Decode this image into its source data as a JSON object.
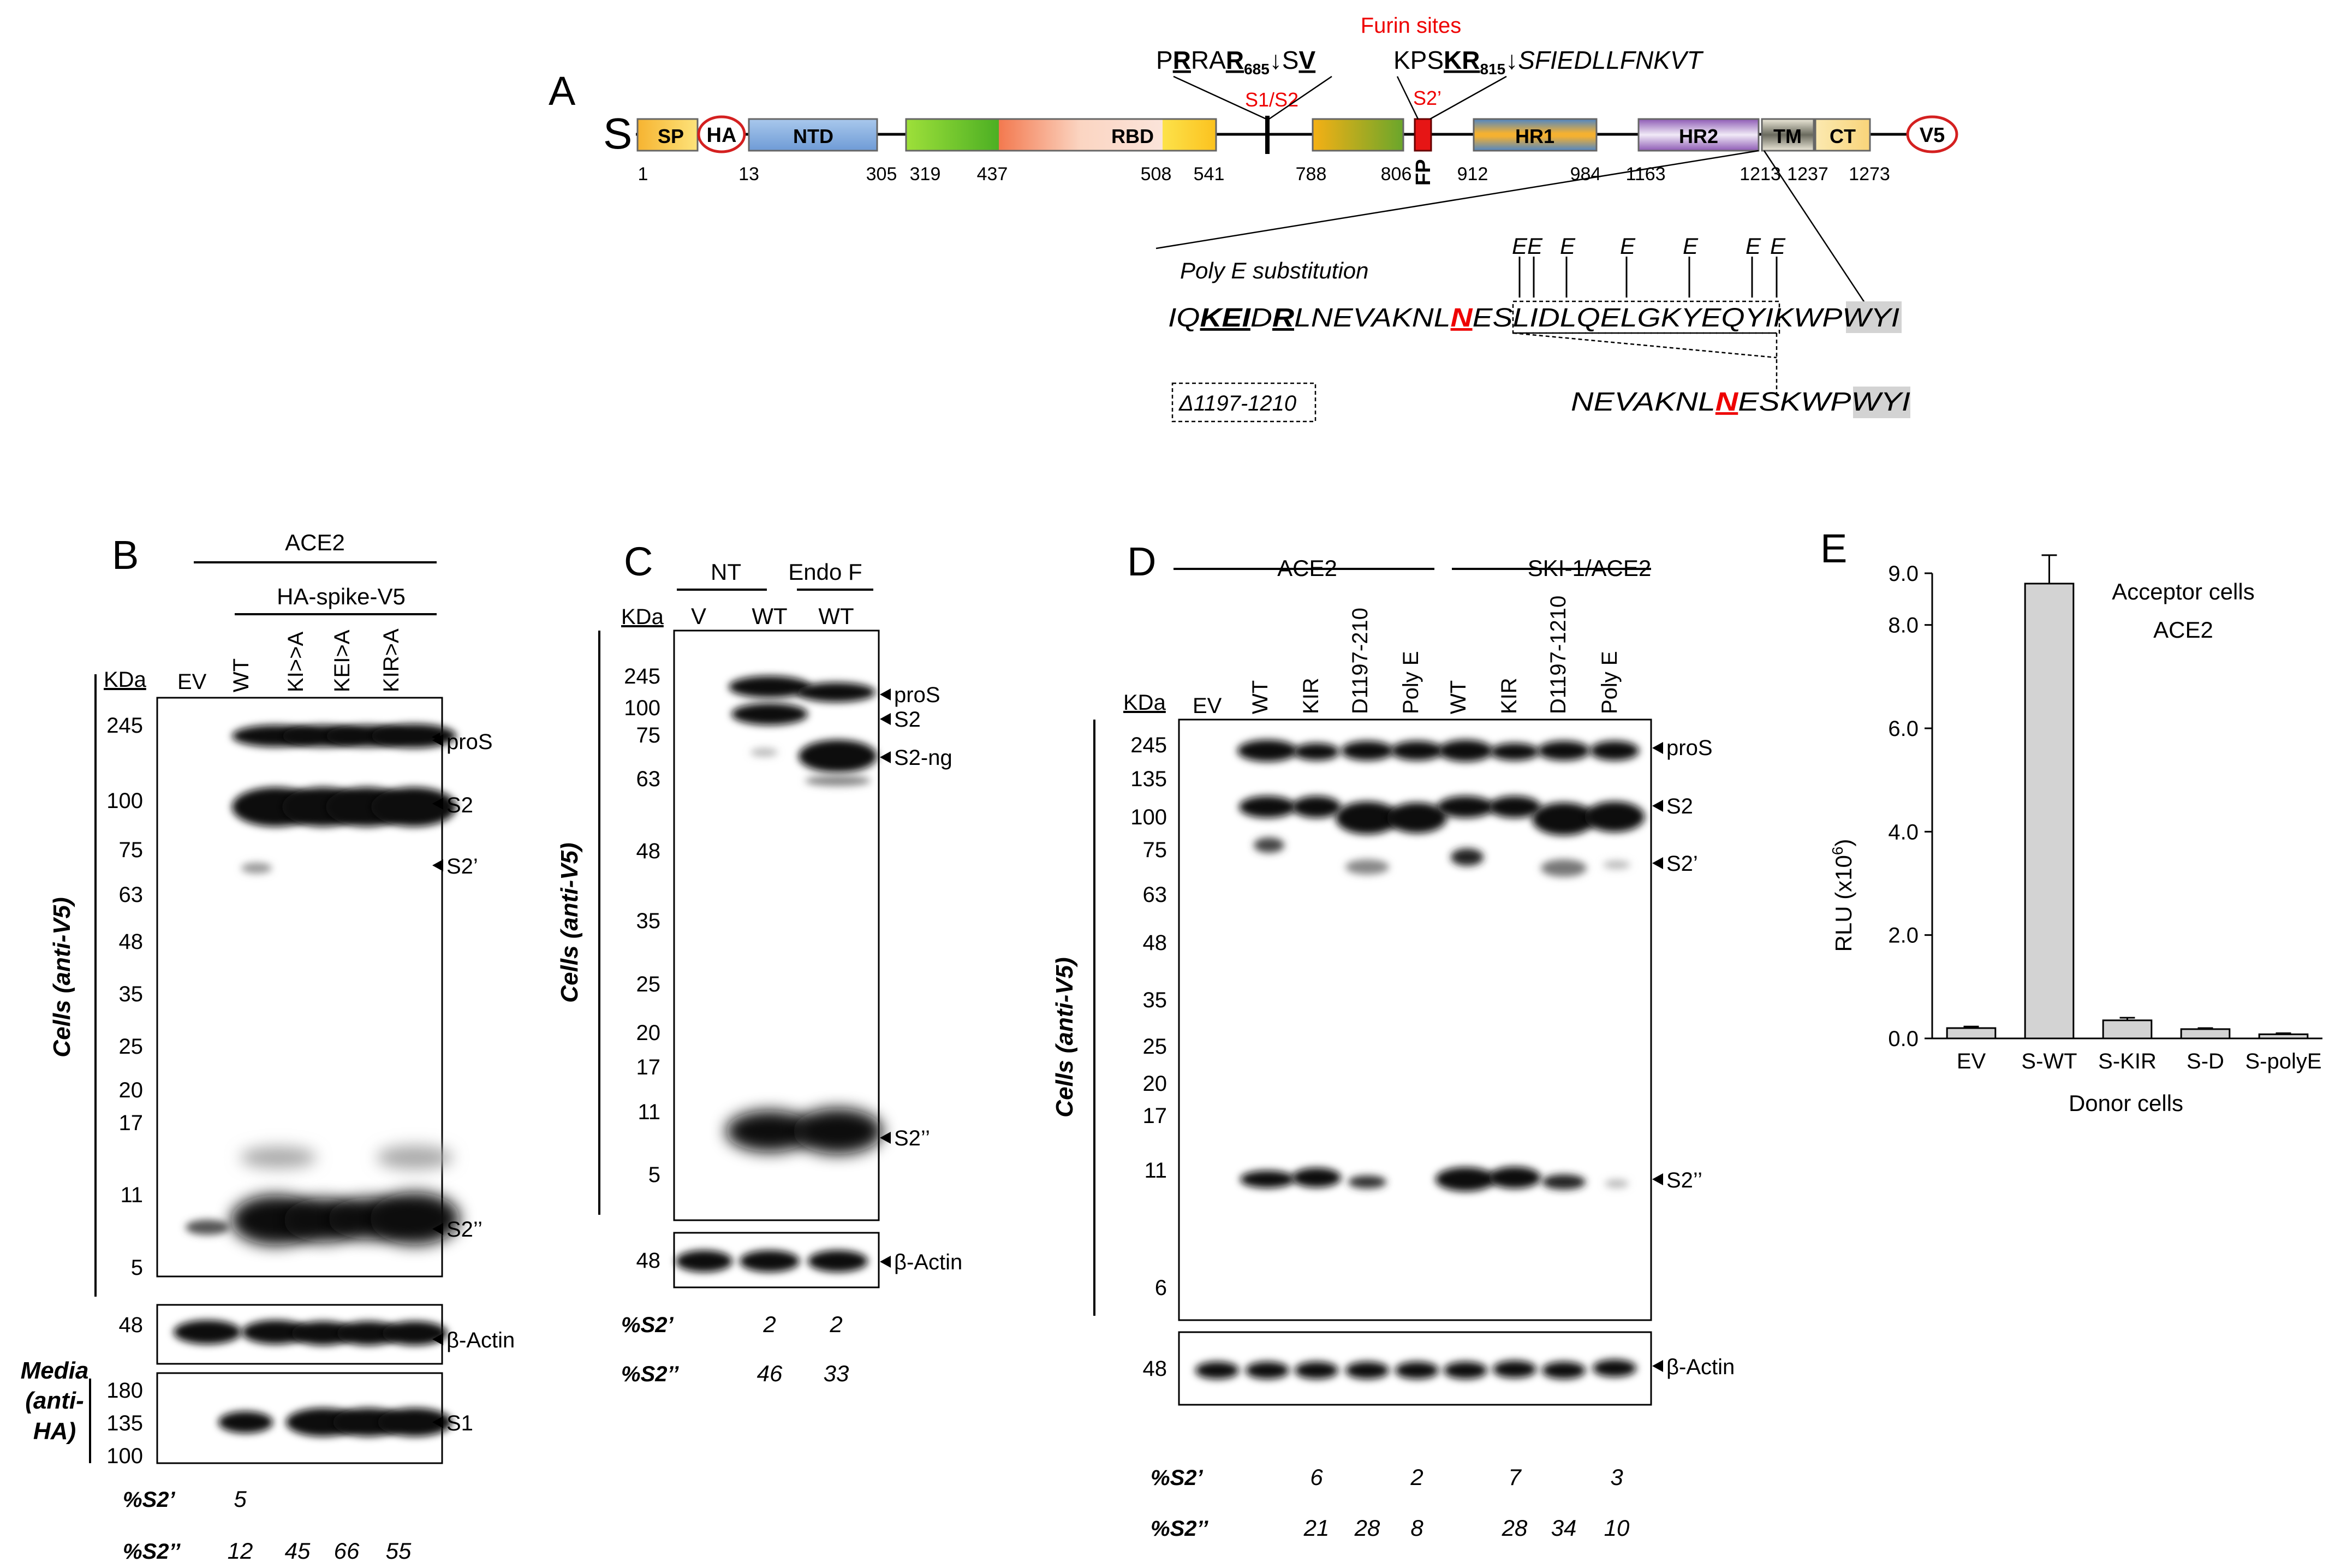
{
  "panel_letters": {
    "a": "A",
    "b": "B",
    "c": "C",
    "d": "D",
    "e": "E"
  },
  "panel_a": {
    "protein_label": "S",
    "domains": {
      "sp": "SP",
      "ha": "HA",
      "ntd": "NTD",
      "rbd": "RBD",
      "hr1": "HR1",
      "hr2": "HR2",
      "tm": "TM",
      "ct": "CT",
      "v5": "V5",
      "fp": "FP"
    },
    "positions": [
      "1",
      "13",
      "305",
      "319",
      "437",
      "508",
      "541",
      "788",
      "806",
      "912",
      "984",
      "1163",
      "1213",
      "1237",
      "1273"
    ],
    "furin_title": "Furin sites",
    "s1s2_label": "S1/S2",
    "s2prime_label": "S2’",
    "s1s2_seq": {
      "p1": "P",
      "r1": "R",
      "ra": "RA",
      "r685": "R",
      "sub685": "685",
      "arrow": "↓",
      "s": "S",
      "v": "V"
    },
    "s2prime_seq": {
      "kps": "KPS",
      "kr": "KR",
      "sub815": "815",
      "arrow": "↓",
      "tail": "SFIEDLLFNKVT"
    },
    "polye_title": "Poly E substitution",
    "e_mark": "E",
    "seq_wt": {
      "a": "IQ",
      "b": "KEI",
      "c": "D",
      "d": "R",
      "e": "LNEVAKNL",
      "f": "N",
      "g": "ES",
      "h": "LIDLQELGKYEQYI",
      "i": "KWP",
      "j": "WYI"
    },
    "deletion_label": "Δ1197-1210",
    "seq_del": {
      "a": "NEVAKNL",
      "b": "N",
      "c": "ES",
      "d": "KWP",
      "e": "WYI"
    }
  },
  "panel_b": {
    "top_label": "ACE2",
    "construct_label": "HA-spike-V5",
    "kda": "KDa",
    "lanes": [
      "EV",
      "WT",
      "KI>>A",
      "KEI>A",
      "KIR>A"
    ],
    "y_axis_label": "Cells (anti-V5)",
    "markers": [
      "245",
      "100",
      "75",
      "63",
      "48",
      "35",
      "25",
      "20",
      "17",
      "11",
      "5"
    ],
    "actin_marker": "48",
    "media_markers": [
      "180",
      "135",
      "100"
    ],
    "media_label_1": "Media",
    "media_label_2": "(anti-",
    "media_label_3": "HA)",
    "bands": [
      "proS",
      "S2",
      "S2’",
      "S2’’"
    ],
    "actin": "β-Actin",
    "media_band": "S1",
    "pct_s2p_label": "%S2’",
    "pct_s2pp_label": "%S2’’",
    "pct_s2p": [
      "",
      "5",
      "",
      "",
      ""
    ],
    "pct_s2pp": [
      "",
      "12",
      "45",
      "66",
      "55"
    ]
  },
  "panel_c": {
    "groups": [
      "NT",
      "Endo F"
    ],
    "kda": "KDa",
    "lanes": [
      "V",
      "WT",
      "WT"
    ],
    "y_axis_label": "Cells (anti-V5)",
    "markers": [
      "245",
      "100",
      "75",
      "63",
      "48",
      "35",
      "25",
      "20",
      "17",
      "11",
      "5"
    ],
    "actin_marker": "48",
    "bands": [
      "proS",
      "S2",
      "S2-ng",
      "S2’’"
    ],
    "actin": "β-Actin",
    "pct_s2p_label": "%S2’",
    "pct_s2pp_label": "%S2’’",
    "pct_s2p": [
      "",
      "2",
      "2"
    ],
    "pct_s2pp": [
      "",
      "46",
      "33"
    ]
  },
  "panel_d": {
    "groups": [
      "ACE2",
      "SKI-1/ACE2"
    ],
    "kda": "KDa",
    "lanes": [
      "EV",
      "WT",
      "KIR",
      "D1197-210",
      "Poly E",
      "WT",
      "KIR",
      "D1197-1210",
      "Poly E"
    ],
    "y_axis_label": "Cells (anti-V5)",
    "markers": [
      "245",
      "135",
      "100",
      "75",
      "63",
      "48",
      "35",
      "25",
      "20",
      "17",
      "11",
      "6"
    ],
    "actin_marker": "48",
    "bands": [
      "proS",
      "S2",
      "S2’",
      "S2’’"
    ],
    "actin": "β-Actin",
    "pct_s2p_label": "%S2’",
    "pct_s2pp_label": "%S2’’",
    "pct_s2p": [
      "",
      "",
      "6",
      "",
      "2",
      "",
      "7",
      "",
      "3"
    ],
    "pct_s2pp": [
      "",
      "",
      "21",
      "28",
      "8",
      "",
      "28",
      "34",
      "10"
    ]
  },
  "chart_data": {
    "type": "bar",
    "title": "Acceptor cells",
    "subtitle": "ACE2",
    "ylabel": "RLU (x10",
    "ylabel_sup": "6",
    "ylabel_end": ")",
    "xlabel": "Donor cells",
    "categories": [
      "EV",
      "S-WT",
      "S-KIR",
      "S-D",
      "S-polyE"
    ],
    "values": [
      0.2,
      8.8,
      0.35,
      0.18,
      0.08
    ],
    "errors": [
      0.03,
      0.55,
      0.05,
      0.02,
      0.02
    ],
    "ylim": [
      0,
      9
    ],
    "yticks": [
      "0.0",
      "2.0",
      "4.0",
      "6.0",
      "8.0",
      "9.0"
    ],
    "bar_color": "#d3d3d3"
  }
}
